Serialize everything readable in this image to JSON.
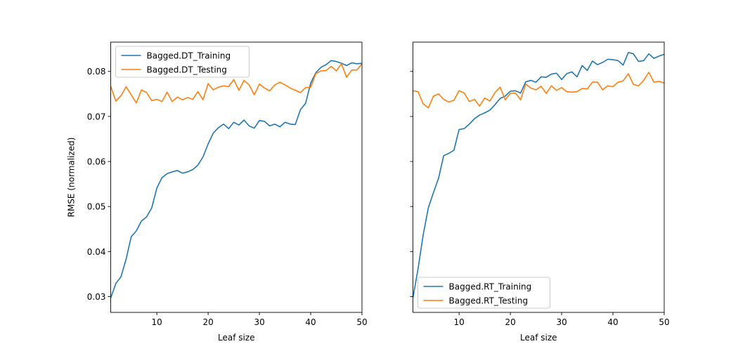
{
  "chart_data": [
    {
      "type": "line",
      "title": "",
      "xlabel": "Leaf size",
      "ylabel": "RMSE (normalized)",
      "xlim": [
        1,
        50
      ],
      "ylim": [
        0.0265,
        0.0865
      ],
      "xticks": [
        10,
        20,
        30,
        40,
        50
      ],
      "yticks": [
        0.03,
        0.04,
        0.05,
        0.06,
        0.07,
        0.08
      ],
      "grid": false,
      "legend": "upper-left",
      "x": [
        1,
        2,
        3,
        4,
        5,
        6,
        7,
        8,
        9,
        10,
        11,
        12,
        13,
        14,
        15,
        16,
        17,
        18,
        19,
        20,
        21,
        22,
        23,
        24,
        25,
        26,
        27,
        28,
        29,
        30,
        31,
        32,
        33,
        34,
        35,
        36,
        37,
        38,
        39,
        40,
        41,
        42,
        43,
        44,
        45,
        46,
        47,
        48,
        49,
        50
      ],
      "series": [
        {
          "name": "Bagged.DT_Training",
          "color": "#1f77b4",
          "values": [
            0.0297,
            0.0329,
            0.0344,
            0.0383,
            0.0433,
            0.0446,
            0.0468,
            0.0477,
            0.0497,
            0.0541,
            0.0564,
            0.0573,
            0.0577,
            0.058,
            0.0574,
            0.0577,
            0.0582,
            0.0592,
            0.061,
            0.0639,
            0.0663,
            0.0675,
            0.0683,
            0.0673,
            0.0687,
            0.0681,
            0.0692,
            0.0679,
            0.0674,
            0.0691,
            0.0689,
            0.0679,
            0.0683,
            0.0677,
            0.0687,
            0.0683,
            0.0682,
            0.0715,
            0.0729,
            0.0774,
            0.0797,
            0.0809,
            0.0815,
            0.0824,
            0.0822,
            0.0818,
            0.0813,
            0.0819,
            0.0817,
            0.0818
          ]
        },
        {
          "name": "Bagged.DT_Testing",
          "color": "#ff7f0e",
          "values": [
            0.0767,
            0.0734,
            0.0746,
            0.0766,
            0.0748,
            0.073,
            0.0759,
            0.0753,
            0.0735,
            0.0738,
            0.0733,
            0.0754,
            0.0733,
            0.0743,
            0.0737,
            0.0742,
            0.0738,
            0.0755,
            0.0737,
            0.0773,
            0.0759,
            0.0765,
            0.0768,
            0.0766,
            0.0782,
            0.0758,
            0.078,
            0.077,
            0.0748,
            0.0772,
            0.0763,
            0.0757,
            0.077,
            0.0776,
            0.077,
            0.0763,
            0.0758,
            0.0753,
            0.0764,
            0.0765,
            0.0795,
            0.0801,
            0.0802,
            0.0811,
            0.0801,
            0.0817,
            0.0787,
            0.0803,
            0.0803,
            0.0817
          ]
        }
      ]
    },
    {
      "type": "line",
      "title": "",
      "xlabel": "Leaf size",
      "ylabel": "",
      "xlim": [
        1,
        50
      ],
      "ylim": [
        0.0265,
        0.0865
      ],
      "xticks": [
        10,
        20,
        30,
        40,
        50
      ],
      "yticks": [
        0.03,
        0.04,
        0.05,
        0.06,
        0.07,
        0.08
      ],
      "sharey": true,
      "grid": false,
      "legend": "lower-left",
      "x": [
        1,
        2,
        3,
        4,
        5,
        6,
        7,
        8,
        9,
        10,
        11,
        12,
        13,
        14,
        15,
        16,
        17,
        18,
        19,
        20,
        21,
        22,
        23,
        24,
        25,
        26,
        27,
        28,
        29,
        30,
        31,
        32,
        33,
        34,
        35,
        36,
        37,
        38,
        39,
        40,
        41,
        42,
        43,
        44,
        45,
        46,
        47,
        48,
        49,
        50
      ],
      "series": [
        {
          "name": "Bagged.RT_Training",
          "color": "#1f77b4",
          "values": [
            0.0297,
            0.0362,
            0.0437,
            0.0497,
            0.0531,
            0.0563,
            0.0613,
            0.0618,
            0.0625,
            0.0671,
            0.0673,
            0.0683,
            0.0695,
            0.0703,
            0.0708,
            0.0714,
            0.0726,
            0.074,
            0.0745,
            0.0756,
            0.0757,
            0.0752,
            0.0777,
            0.078,
            0.0776,
            0.0788,
            0.0787,
            0.0794,
            0.0796,
            0.0782,
            0.0795,
            0.0799,
            0.0788,
            0.0813,
            0.0802,
            0.0823,
            0.0815,
            0.082,
            0.0827,
            0.0826,
            0.0824,
            0.0814,
            0.0842,
            0.0839,
            0.0822,
            0.0824,
            0.0839,
            0.0829,
            0.0834,
            0.0838
          ]
        },
        {
          "name": "Bagged.RT_Testing",
          "color": "#ff7f0e",
          "values": [
            0.0757,
            0.0755,
            0.0728,
            0.0719,
            0.0745,
            0.075,
            0.0738,
            0.0732,
            0.0736,
            0.0757,
            0.0752,
            0.0733,
            0.0738,
            0.0723,
            0.0741,
            0.0734,
            0.0753,
            0.0765,
            0.0737,
            0.0751,
            0.0752,
            0.0737,
            0.0772,
            0.0763,
            0.0759,
            0.0767,
            0.0751,
            0.0768,
            0.0758,
            0.0764,
            0.0755,
            0.0754,
            0.0755,
            0.0762,
            0.0761,
            0.0776,
            0.0776,
            0.0759,
            0.0768,
            0.0766,
            0.0776,
            0.0779,
            0.0795,
            0.0771,
            0.0768,
            0.078,
            0.0798,
            0.0776,
            0.0778,
            0.0774
          ]
        }
      ]
    }
  ]
}
